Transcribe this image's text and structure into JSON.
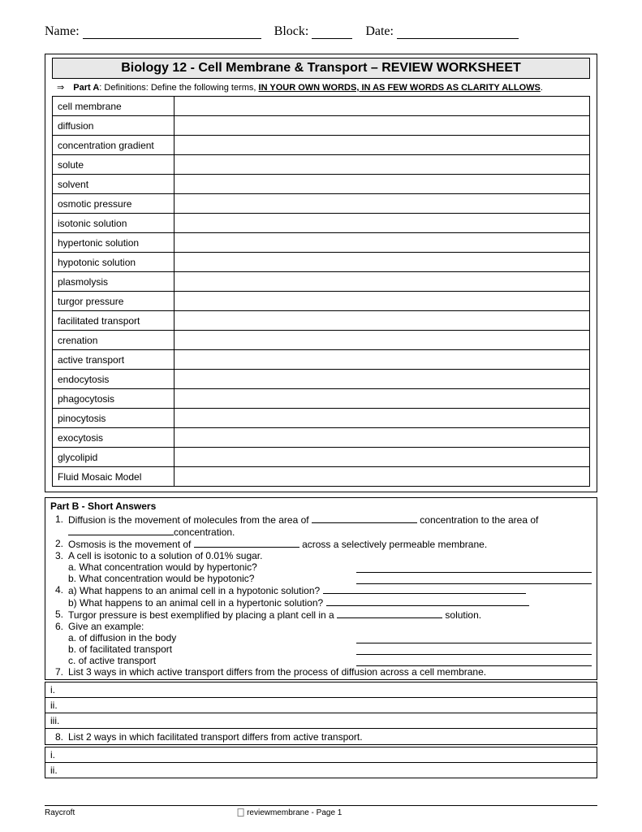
{
  "header": {
    "name_label": "Name:",
    "block_label": "Block:",
    "date_label": "Date:"
  },
  "title": "Biology 12 - Cell Membrane & Transport – REVIEW WORKSHEET",
  "partA": {
    "arrow": "⇒",
    "label": "Part A",
    "instr_prefix": ": Definitions: Define the following terms, ",
    "instr_bold": "IN YOUR OWN WORDS, IN AS FEW WORDS AS CLARITY ALLOWS",
    "instr_period": ".",
    "terms": [
      "cell membrane",
      "diffusion",
      "concentration gradient",
      "solute",
      "solvent",
      "osmotic pressure",
      "isotonic solution",
      "hypertonic solution",
      "hypotonic solution",
      "plasmolysis",
      "turgor pressure",
      "facilitated transport",
      "crenation",
      "active transport",
      "endocytosis",
      "phagocytosis",
      "pinocytosis",
      "exocytosis",
      "glycolipid",
      "Fluid Mosaic Model"
    ]
  },
  "partB": {
    "title": "Part B - Short Answers",
    "q1a": "Diffusion is the movement of molecules from the area of ",
    "q1b": "concentration to the area of",
    "q1c": "concentration.",
    "q2a": "Osmosis is the movement of ",
    "q2b": "across a selectively permeable membrane.",
    "q3": "A cell is isotonic to a solution of 0.01% sugar.",
    "q3a": "a. What concentration would by hypertonic?",
    "q3b": "b. What concentration would be hypotonic?",
    "q4a": "a) What happens to an animal cell in a hypotonic solution? ",
    "q4b": "b) What happens to an animal cell in a hypertonic solution? ",
    "q5a": "Turgor pressure is best exemplified by placing a plant cell in a ",
    "q5b": "solution.",
    "q6": "Give an example:",
    "q6a": "a. of diffusion in the body",
    "q6b": "b. of facilitated transport",
    "q6c": "c. of active transport",
    "q7": "List 3 ways in which active transport differs from the process of diffusion across a cell membrane.",
    "q8": "List 2 ways in which facilitated transport differs from active transport.",
    "roman": {
      "i": "i.",
      "ii": "ii.",
      "iii": "iii."
    },
    "nums": {
      "n1": "1.",
      "n2": "2.",
      "n3": "3.",
      "n4": "4.",
      "n5": "5.",
      "n6": "6.",
      "n7": "7.",
      "n8": "8."
    }
  },
  "footer": {
    "left": "Raycroft",
    "right": "reviewmembrane - Page 1"
  }
}
